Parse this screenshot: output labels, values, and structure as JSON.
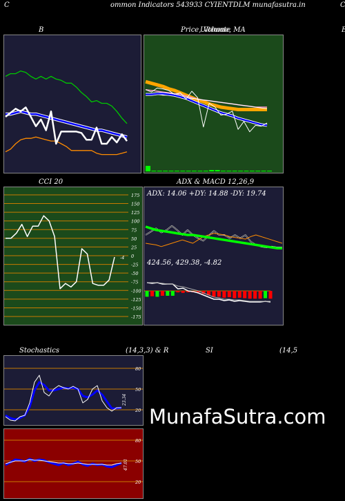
{
  "header": {
    "left_letter": "C",
    "title": "ommon  Indicators 543933 CYIENTDLM munafasutra.in",
    "right_letter": "C"
  },
  "panels": {
    "bollinger": {
      "title": "B"
    },
    "price": {
      "title": "Price,  Volume,  MA",
      "title_overlap": "Ultimate",
      "edge_letter": "E"
    },
    "cci": {
      "title": "CCI 20",
      "current_value": "-4"
    },
    "adx": {
      "title": "ADX  & MACD 12,26,9",
      "adx_label": "ADX: 14.06  +DY: 14.88  -DY: 19.74",
      "macd_label": "424.56,  429.38,  -4.82"
    },
    "stoch": {
      "title_left": "Stochastics",
      "title_mid": "(14,3,3) & R",
      "current_value": "23.34"
    },
    "rsi": {
      "title_mid": "SI",
      "title_right": "(14,5",
      "current_value": "47.01"
    }
  },
  "watermark": "MunafaSutra.com",
  "colors": {
    "bollinger_bg": "#1c1c36",
    "price_bg": "#1b4a1b",
    "cci_bg": "#1b4a1b",
    "adx_bg": "#1c1c36",
    "stoch_bg": "#1c1c36",
    "rsi_bg": "#8b0000",
    "upper_band": "#00c800",
    "lower_band": "#ff8c00",
    "mid_band": "#0000ff",
    "price_line": "#ffffff",
    "ma_orange": "#ffa500",
    "volume": "#00ff00",
    "adx_green": "#00ff00",
    "macd_red": "#ff0000",
    "stoch_blue": "#0000ff",
    "level_line": "#c87a00"
  },
  "chart_data": [
    {
      "type": "line",
      "name": "bollinger",
      "series": [
        {
          "name": "upper",
          "values": [
            70,
            72,
            72,
            74,
            73,
            70,
            68,
            70,
            68,
            70,
            68,
            67,
            65,
            65,
            62,
            58,
            55,
            51,
            52,
            50,
            50,
            48,
            44,
            39,
            35
          ]
        },
        {
          "name": "middle",
          "values": [
            42,
            42,
            43,
            44,
            43,
            42,
            42,
            41,
            40,
            39,
            38,
            37,
            36,
            35,
            34,
            33,
            32,
            31,
            30,
            30,
            29,
            28,
            27,
            26,
            25
          ]
        },
        {
          "name": "lower",
          "values": [
            14,
            16,
            20,
            23,
            24,
            24,
            25,
            24,
            23,
            22,
            22,
            20,
            18,
            15,
            15,
            15,
            15,
            15,
            13,
            12,
            12,
            12,
            12,
            13,
            14
          ]
        },
        {
          "name": "price",
          "values": [
            40,
            43,
            46,
            44,
            47,
            40,
            33,
            38,
            30,
            44,
            20,
            29,
            29,
            29,
            29,
            28,
            23,
            23,
            32,
            20,
            20,
            25,
            21,
            27,
            22
          ]
        }
      ],
      "ylim": [
        0,
        100
      ]
    },
    {
      "type": "line",
      "name": "price_volume_ma",
      "series": [
        {
          "name": "ma_orange",
          "values": [
            72,
            70,
            68,
            66,
            63,
            61,
            58,
            55,
            52,
            49,
            47,
            44,
            42,
            40,
            39,
            38,
            37,
            37,
            37,
            37,
            37,
            37
          ]
        },
        {
          "name": "ma_pink",
          "values": [
            62,
            61,
            60,
            59,
            58,
            57,
            56,
            54,
            52,
            50,
            49,
            48,
            47,
            46,
            45,
            44,
            43,
            42,
            41,
            40,
            40,
            40
          ]
        },
        {
          "name": "ma_white",
          "values": [
            57,
            57,
            56,
            55,
            55,
            54,
            53,
            52,
            51,
            50,
            49,
            48,
            47,
            46,
            45,
            44,
            43,
            42,
            41,
            40,
            39,
            38
          ]
        },
        {
          "name": "ma_blue",
          "values": [
            56,
            56,
            57,
            57,
            56,
            55,
            53,
            51,
            48,
            45,
            42,
            39,
            36,
            33,
            31,
            29,
            26,
            24,
            22,
            20,
            18,
            17
          ]
        },
        {
          "name": "price",
          "values": [
            62,
            59,
            64,
            63,
            61,
            56,
            58,
            50,
            60,
            52,
            15,
            45,
            40,
            30,
            31,
            35,
            12,
            22,
            9,
            17,
            16,
            20
          ]
        },
        {
          "name": "volume",
          "values": [
            8,
            1,
            1,
            1,
            1,
            1,
            1,
            1,
            1,
            1,
            1,
            2,
            2,
            1,
            1,
            1,
            1,
            1,
            1,
            1,
            1,
            1
          ]
        }
      ],
      "ylim": [
        0,
        100
      ]
    },
    {
      "type": "line",
      "name": "cci",
      "y": [
        50,
        50,
        65,
        90,
        55,
        85,
        85,
        115,
        100,
        55,
        -95,
        -80,
        -90,
        -75,
        20,
        5,
        -80,
        -85,
        -85,
        -70,
        -4
      ],
      "levels": [
        175,
        150,
        125,
        100,
        75,
        50,
        25,
        0,
        -25,
        -50,
        -75,
        -100,
        -125,
        -150,
        -175
      ],
      "ylim": [
        -185,
        185
      ]
    },
    {
      "type": "line",
      "name": "adx_macd",
      "series": [
        {
          "name": "adx",
          "values": [
            40,
            38,
            36,
            35,
            34,
            33,
            32,
            31,
            30,
            30,
            29,
            28,
            27,
            26,
            25,
            24,
            23,
            22,
            21,
            20,
            19,
            18,
            17,
            16,
            15,
            14,
            14
          ]
        },
        {
          "name": "plus_dy",
          "values": [
            30,
            34,
            38,
            33,
            36,
            41,
            36,
            30,
            36,
            30,
            26,
            23,
            29,
            35,
            30,
            30,
            26,
            30,
            26,
            30,
            22,
            18,
            16,
            15,
            16,
            15,
            15
          ]
        },
        {
          "name": "minus_dy",
          "values": [
            20,
            19,
            18,
            16,
            18,
            20,
            22,
            24,
            22,
            20,
            24,
            28,
            30,
            32,
            31,
            30,
            28,
            27,
            26,
            25,
            28,
            30,
            28,
            26,
            24,
            22,
            20
          ]
        },
        {
          "name": "macd",
          "values": [
            12,
            11,
            12,
            10,
            10,
            10,
            3,
            4,
            0,
            -1,
            -3,
            -6,
            -9,
            -12,
            -12,
            -14,
            -13,
            -15,
            -14,
            -15,
            -16,
            -16,
            -16,
            -15,
            -16
          ]
        },
        {
          "name": "signal",
          "values": [
            12,
            12,
            12,
            11,
            10,
            10,
            7,
            6,
            4,
            2,
            0,
            -3,
            -6,
            -9,
            -10,
            -12,
            -12,
            -13,
            -13,
            -14,
            -15,
            -15,
            -15,
            -15,
            -15
          ]
        }
      ]
    },
    {
      "type": "line",
      "name": "stochastics",
      "series": [
        {
          "name": "k",
          "values": [
            10,
            5,
            4,
            10,
            12,
            30,
            60,
            70,
            45,
            40,
            50,
            55,
            52,
            50,
            54,
            50,
            30,
            35,
            50,
            55,
            33,
            23,
            18,
            23,
            23
          ]
        },
        {
          "name": "d",
          "values": [
            12,
            8,
            6,
            8,
            12,
            24,
            48,
            60,
            56,
            48,
            48,
            50,
            52,
            51,
            52,
            50,
            40,
            38,
            42,
            48,
            42,
            32,
            22,
            22,
            23
          ]
        }
      ],
      "levels": [
        80,
        50,
        20
      ],
      "ylim": [
        0,
        100
      ]
    },
    {
      "type": "line",
      "name": "rsi",
      "series": [
        {
          "name": "rsi_blue",
          "values": [
            44,
            48,
            52,
            51,
            49,
            53,
            50,
            52,
            51,
            48,
            46,
            44,
            47,
            44,
            46,
            49,
            45,
            43,
            46,
            44,
            45,
            42,
            41,
            44,
            47
          ]
        },
        {
          "name": "rsi_white",
          "values": [
            46,
            48,
            50,
            50,
            50,
            52,
            51,
            51,
            50,
            49,
            48,
            47,
            47,
            46,
            46,
            47,
            46,
            45,
            45,
            45,
            45,
            44,
            44,
            46,
            47
          ]
        }
      ],
      "levels": [
        80,
        50,
        20
      ],
      "ylim": [
        0,
        100
      ]
    }
  ]
}
